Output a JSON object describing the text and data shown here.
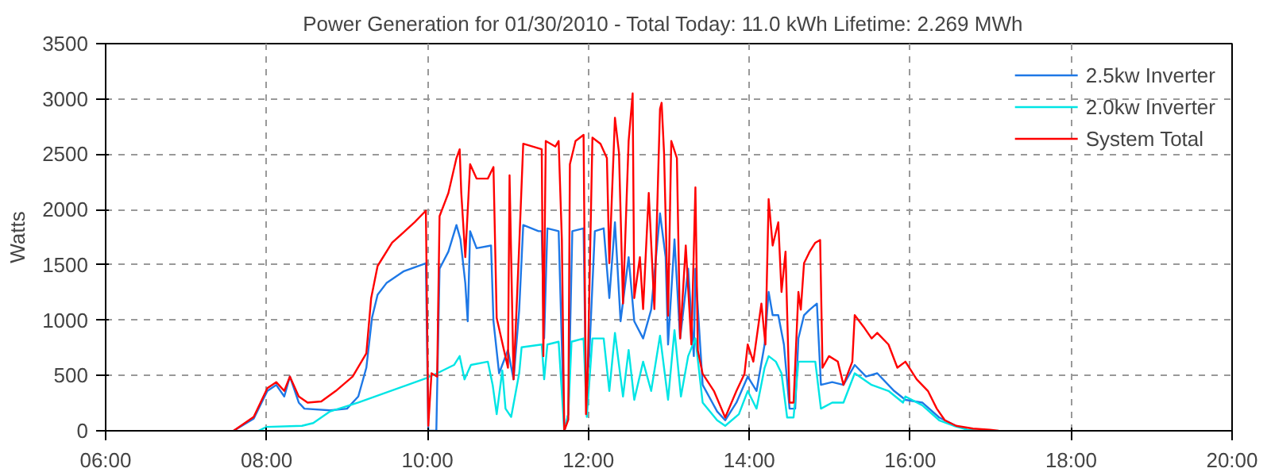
{
  "chart_data": {
    "type": "line",
    "title": "Power Generation for 01/30/2010 - Total Today: 11.0 kWh   Lifetime: 2.269 MWh",
    "ylabel": "Watts",
    "xlim": [
      6,
      20
    ],
    "xticks": [
      {
        "value": 6,
        "label": "06:00"
      },
      {
        "value": 8,
        "label": "08:00"
      },
      {
        "value": 10,
        "label": "10:00"
      },
      {
        "value": 12,
        "label": "12:00"
      },
      {
        "value": 14,
        "label": "14:00"
      },
      {
        "value": 16,
        "label": "16:00"
      },
      {
        "value": 18,
        "label": "18:00"
      },
      {
        "value": 20,
        "label": "20:00"
      }
    ],
    "ylim": [
      0,
      3500
    ],
    "yticks": [
      0,
      500,
      1000,
      1500,
      2000,
      2500,
      3000,
      3500
    ],
    "grid": true,
    "legend": "top right",
    "line_style": "solid",
    "marker": "none",
    "series": [
      {
        "name": "2.5kw Inverter",
        "color": "#1e78e6",
        "x": [
          7.59,
          7.84,
          8.01,
          8.12,
          8.22,
          8.29,
          8.4,
          8.47,
          8.79,
          9.0,
          9.14,
          9.24,
          9.31,
          9.38,
          9.49,
          9.7,
          9.98,
          10.01,
          10.11,
          10.15,
          10.26,
          10.36,
          10.41,
          10.47,
          10.5,
          10.53,
          10.61,
          10.79,
          10.82,
          10.89,
          11.0,
          11.07,
          11.14,
          11.19,
          11.38,
          11.42,
          11.45,
          11.49,
          11.63,
          11.7,
          11.75,
          11.8,
          11.94,
          11.97,
          12.01,
          12.08,
          12.19,
          12.26,
          12.33,
          12.4,
          12.5,
          12.57,
          12.68,
          12.78,
          12.89,
          12.96,
          12.99,
          13.07,
          13.14,
          13.24,
          13.31,
          13.33,
          13.42,
          13.6,
          13.7,
          13.84,
          13.98,
          14.09,
          14.19,
          14.24,
          14.29,
          14.36,
          14.43,
          14.5,
          14.57,
          14.61,
          14.68,
          14.75,
          14.84,
          14.89,
          15.03,
          15.17,
          15.31,
          15.45,
          15.59,
          15.8,
          15.94,
          16.15,
          16.36,
          16.57
        ],
        "values": [
          0,
          110,
          360,
          415,
          310,
          490,
          255,
          200,
          185,
          200,
          310,
          570,
          1020,
          1230,
          1335,
          1440,
          1515,
          0,
          0,
          1465,
          1620,
          1860,
          1730,
          1335,
          990,
          1805,
          1650,
          1675,
          990,
          520,
          730,
          465,
          1095,
          1860,
          1805,
          1805,
          835,
          1830,
          1805,
          0,
          150,
          1805,
          1830,
          360,
          675,
          1805,
          1830,
          1200,
          1885,
          990,
          1570,
          990,
          835,
          1095,
          1965,
          1570,
          780,
          1730,
          835,
          1465,
          675,
          1465,
          415,
          175,
          95,
          255,
          490,
          360,
          780,
          1255,
          1045,
          1045,
          780,
          200,
          200,
          835,
          1045,
          1095,
          1150,
          415,
          440,
          415,
          595,
          490,
          520,
          360,
          280,
          255,
          120,
          45
        ]
      },
      {
        "name": "2.0kw Inverter",
        "color": "#00e5e5",
        "x": [
          7.9,
          8.0,
          8.44,
          8.58,
          8.79,
          9.14,
          9.98,
          10.12,
          10.33,
          10.4,
          10.46,
          10.54,
          10.75,
          10.81,
          10.86,
          10.93,
          10.97,
          11.04,
          11.14,
          11.17,
          11.42,
          11.45,
          11.49,
          11.63,
          11.7,
          11.75,
          11.79,
          11.94,
          11.98,
          12.05,
          12.19,
          12.26,
          12.33,
          12.43,
          12.5,
          12.57,
          12.68,
          12.78,
          12.89,
          12.99,
          13.07,
          13.15,
          13.24,
          13.33,
          13.42,
          13.6,
          13.7,
          13.87,
          13.98,
          14.09,
          14.19,
          14.24,
          14.33,
          14.4,
          14.47,
          14.55,
          14.61,
          14.82,
          14.89,
          15.03,
          15.17,
          15.31,
          15.52,
          15.73,
          15.91,
          15.94,
          16.15,
          16.36,
          16.54,
          16.71,
          16.85
        ],
        "values": [
          0,
          35,
          45,
          70,
          175,
          255,
          475,
          520,
          595,
          675,
          465,
          595,
          625,
          415,
          150,
          545,
          200,
          125,
          520,
          755,
          780,
          465,
          780,
          805,
          0,
          150,
          805,
          835,
          125,
          835,
          835,
          360,
          885,
          310,
          730,
          280,
          625,
          360,
          860,
          280,
          910,
          310,
          675,
          835,
          255,
          95,
          45,
          150,
          360,
          200,
          570,
          675,
          625,
          520,
          120,
          120,
          625,
          625,
          200,
          255,
          255,
          520,
          415,
          360,
          255,
          310,
          230,
          95,
          45,
          10,
          0
        ]
      },
      {
        "name": "System Total",
        "color": "#ff0000",
        "x": [
          7.59,
          7.84,
          8.01,
          8.12,
          8.22,
          8.29,
          8.4,
          8.51,
          8.68,
          8.86,
          9.07,
          9.24,
          9.3,
          9.38,
          9.56,
          9.84,
          9.98,
          10.01,
          10.05,
          10.12,
          10.15,
          10.26,
          10.36,
          10.4,
          10.42,
          10.47,
          10.53,
          10.61,
          10.75,
          10.82,
          10.86,
          11.0,
          11.02,
          11.07,
          11.14,
          11.19,
          11.42,
          11.44,
          11.47,
          11.59,
          11.63,
          11.67,
          11.7,
          11.75,
          11.77,
          11.84,
          11.94,
          11.97,
          11.99,
          12.05,
          12.15,
          12.23,
          12.26,
          12.33,
          12.38,
          12.43,
          12.5,
          12.55,
          12.57,
          12.64,
          12.68,
          12.75,
          12.82,
          12.89,
          12.91,
          12.94,
          12.99,
          13.03,
          13.1,
          13.14,
          13.21,
          13.28,
          13.33,
          13.36,
          13.42,
          13.56,
          13.7,
          13.84,
          13.94,
          13.98,
          14.05,
          14.15,
          14.2,
          14.24,
          14.29,
          14.36,
          14.4,
          14.45,
          14.5,
          14.55,
          14.61,
          14.64,
          14.68,
          14.75,
          14.82,
          14.88,
          14.91,
          14.99,
          15.1,
          15.17,
          15.28,
          15.31,
          15.42,
          15.52,
          15.59,
          15.73,
          15.84,
          15.94,
          16.08,
          16.22,
          16.33,
          16.43,
          16.57,
          16.78,
          16.99,
          17.1
        ],
        "values": [
          0,
          125,
          385,
          440,
          360,
          490,
          310,
          255,
          265,
          360,
          490,
          700,
          1200,
          1490,
          1700,
          1885,
          1990,
          45,
          520,
          490,
          1940,
          2150,
          2465,
          2545,
          2150,
          1570,
          2410,
          2280,
          2280,
          2385,
          1020,
          570,
          2310,
          465,
          1675,
          2595,
          2545,
          675,
          2620,
          2570,
          2620,
          1730,
          0,
          100,
          2410,
          2620,
          2675,
          150,
          465,
          2650,
          2595,
          2465,
          1515,
          2830,
          2515,
          1150,
          2620,
          3050,
          1200,
          1570,
          1100,
          2150,
          1100,
          2910,
          2965,
          2515,
          1040,
          2620,
          2465,
          835,
          1675,
          780,
          2200,
          725,
          515,
          360,
          120,
          360,
          515,
          780,
          625,
          1150,
          780,
          2095,
          1675,
          1885,
          1255,
          1620,
          255,
          255,
          1255,
          1095,
          1515,
          1620,
          1700,
          1725,
          570,
          675,
          625,
          415,
          625,
          1045,
          940,
          835,
          885,
          780,
          570,
          625,
          465,
          360,
          200,
          95,
          45,
          20,
          10,
          0
        ]
      }
    ]
  }
}
